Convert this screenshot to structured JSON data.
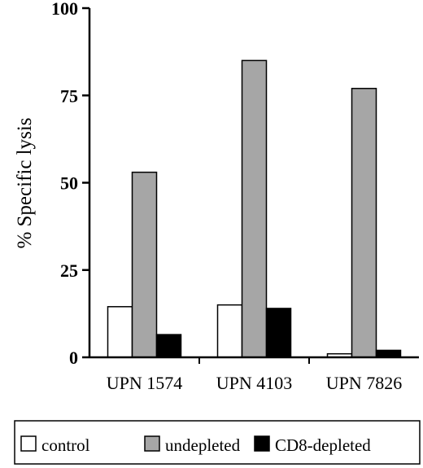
{
  "chart_data": {
    "type": "bar",
    "ylabel": "% Specific lysis",
    "xlabel": "",
    "ylim": [
      0,
      100
    ],
    "yticks": [
      0,
      25,
      50,
      75,
      100
    ],
    "grid": false,
    "legend_position": "bottom",
    "categories": [
      "UPN 1574",
      "UPN 4103",
      "UPN 7826"
    ],
    "series": [
      {
        "name": "control",
        "color": "#ffffff",
        "values": [
          14.5,
          15,
          1
        ]
      },
      {
        "name": "undepleted",
        "color": "#a6a6a6",
        "values": [
          53,
          85,
          77
        ]
      },
      {
        "name": "CD8-depleted",
        "color": "#000000",
        "values": [
          6.5,
          14,
          2
        ]
      }
    ]
  }
}
